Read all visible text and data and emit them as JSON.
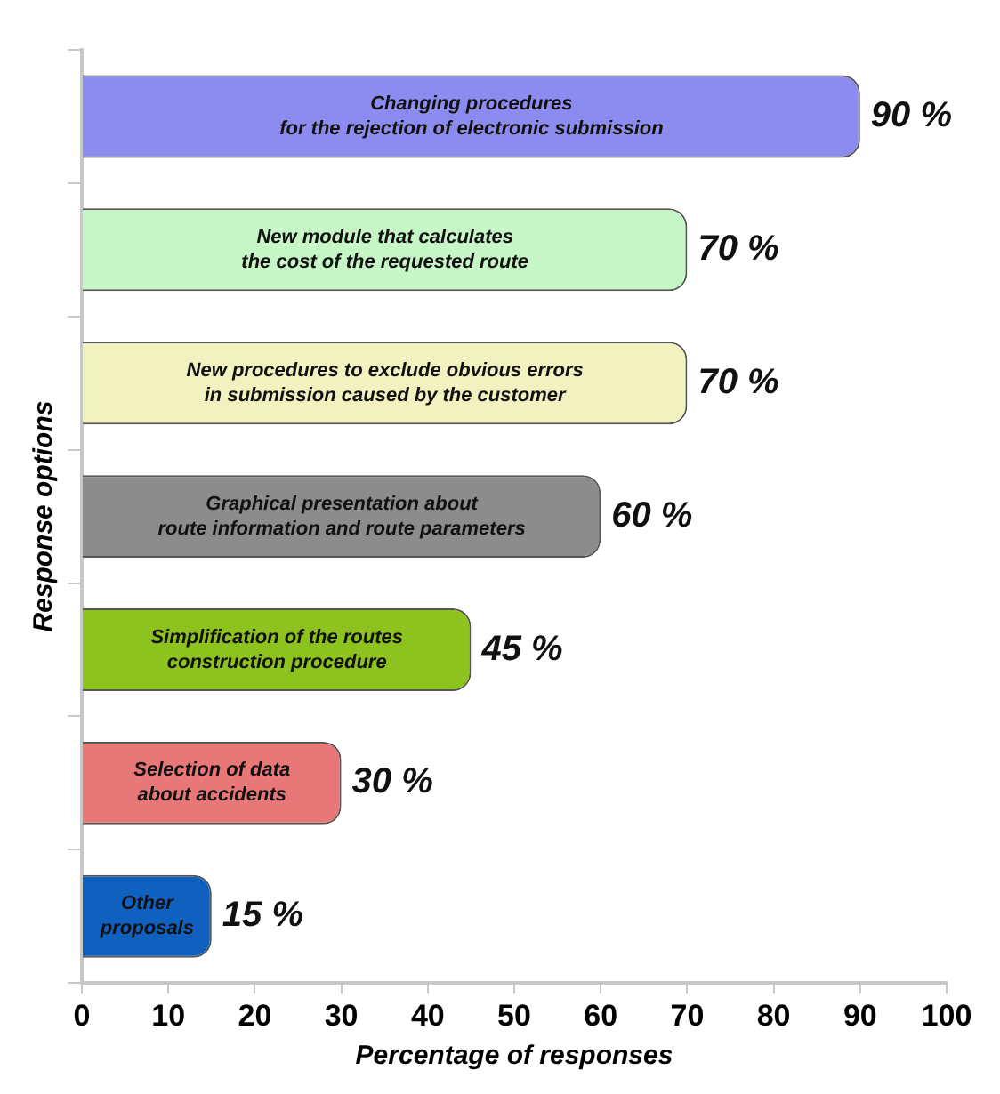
{
  "chart_data": {
    "type": "bar",
    "orientation": "horizontal",
    "xlabel": "Percentage of responses",
    "ylabel": "Response options",
    "categories": [
      "Changing procedures\nfor the rejection of electronic submission",
      "New module that calculates\nthe cost of the requested route",
      "New procedures to exclude obvious errors\nin submission caused by the customer",
      "Graphical presentation about\nroute information and route parameters",
      "Simplification of the routes\nconstruction procedure",
      "Selection of data\nabout accidents",
      "Other\nproposals"
    ],
    "values": [
      90,
      70,
      70,
      60,
      45,
      30,
      15
    ],
    "value_labels": [
      "90 %",
      "70 %",
      "70 %",
      "60 %",
      "45 %",
      "30 %",
      "15 %"
    ],
    "colors": [
      "#8c8cf0",
      "#c6f5c6",
      "#f2f2c0",
      "#8c8c8c",
      "#8dc21f",
      "#e87878",
      "#1060c0"
    ],
    "xlim": [
      0,
      100
    ],
    "xticks": [
      0,
      10,
      20,
      30,
      40,
      50,
      60,
      70,
      80,
      90,
      100
    ],
    "tick_labels": "x",
    "grid": false,
    "legend": false
  }
}
